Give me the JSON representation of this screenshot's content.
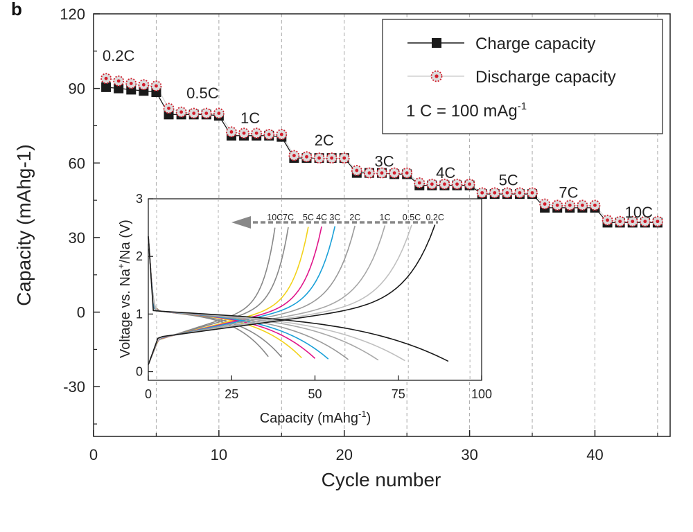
{
  "panel_label": "b",
  "chart_data": [
    {
      "type": "scatter",
      "xlabel": "Cycle number",
      "ylabel": "Capacity (mAhg-1)",
      "xlim": [
        0,
        46
      ],
      "ylim": [
        -50,
        120
      ],
      "xticks": [
        "0",
        "10",
        "20",
        "30",
        "40"
      ],
      "yticks": [
        "-30",
        "0",
        "30",
        "60",
        "90",
        "120"
      ],
      "grid": "vertical dashed lines at every 5 cycles",
      "legend": {
        "placement": "top-right",
        "charge": "Charge capacity",
        "discharge": "Discharge capacity",
        "note_prefix": "1 C = 100 mAg",
        "note_sup": "-1"
      },
      "rate_labels": [
        {
          "label": "0.2C",
          "cycle": 2,
          "value": 101
        },
        {
          "label": "0.5C",
          "cycle": 8.7,
          "value": 86
        },
        {
          "label": "1C",
          "cycle": 12.5,
          "value": 76
        },
        {
          "label": "2C",
          "cycle": 18.4,
          "value": 67
        },
        {
          "label": "3C",
          "cycle": 23.2,
          "value": 58.5
        },
        {
          "label": "4C",
          "cycle": 28.1,
          "value": 54
        },
        {
          "label": "5C",
          "cycle": 33.1,
          "value": 51
        },
        {
          "label": "7C",
          "cycle": 37.9,
          "value": 46
        },
        {
          "label": "10C",
          "cycle": 43.5,
          "value": 38
        }
      ],
      "series": [
        {
          "name": "Charge capacity",
          "marker": "filled-square",
          "color": "#1a1a1a",
          "x": [
            1,
            2,
            3,
            4,
            5,
            6,
            7,
            8,
            9,
            10,
            11,
            12,
            13,
            14,
            15,
            16,
            17,
            18,
            19,
            20,
            21,
            22,
            23,
            24,
            25,
            26,
            27,
            28,
            29,
            30,
            31,
            32,
            33,
            34,
            35,
            36,
            37,
            38,
            39,
            40,
            41,
            42,
            43,
            44,
            45
          ],
          "y": [
            90.5,
            90,
            89.5,
            89,
            88.5,
            79.5,
            79.5,
            79.5,
            79.5,
            79,
            71,
            71,
            71,
            71,
            70.5,
            62,
            62,
            62,
            62,
            62,
            56,
            56,
            56,
            55.5,
            55.5,
            51,
            51,
            51,
            51,
            51,
            47.5,
            47.5,
            47.5,
            47.5,
            47.5,
            42,
            42,
            42,
            42,
            42,
            36,
            36,
            36,
            36,
            36
          ]
        },
        {
          "name": "Discharge capacity",
          "marker": "red-dotted-circle",
          "color": "#d9d9d9",
          "x": [
            1,
            2,
            3,
            4,
            5,
            6,
            7,
            8,
            9,
            10,
            11,
            12,
            13,
            14,
            15,
            16,
            17,
            18,
            19,
            20,
            21,
            22,
            23,
            24,
            25,
            26,
            27,
            28,
            29,
            30,
            31,
            32,
            33,
            34,
            35,
            36,
            37,
            38,
            39,
            40,
            41,
            42,
            43,
            44,
            45
          ],
          "y": [
            94,
            93,
            92,
            91.5,
            91,
            82,
            80.5,
            80,
            80,
            80,
            72.5,
            72,
            72,
            71.5,
            71.5,
            63,
            62.5,
            62,
            62,
            62,
            57,
            56,
            56,
            56,
            56,
            52,
            51.5,
            51.5,
            51.5,
            51.5,
            48,
            48,
            48,
            48,
            48,
            43.5,
            43,
            43,
            43,
            43,
            37,
            36.5,
            36.5,
            36.5,
            36.5
          ]
        }
      ]
    },
    {
      "type": "line",
      "xlabel_prefix": "Capacity (mAhg",
      "xlabel_sup": "-1",
      "xlabel_suffix": ")",
      "ylabel_prefix": "Voltage vs. Na",
      "ylabel_sup": "+",
      "ylabel_suffix": "/Na (V)",
      "xlim": [
        0,
        100
      ],
      "ylim": [
        -0.15,
        3
      ],
      "xticks": [
        "0",
        "25",
        "50",
        "75",
        "100"
      ],
      "yticks": [
        "0",
        "1",
        "2",
        "3"
      ],
      "legend": "top labels with arrow pointing left",
      "curves": [
        {
          "name": "10C",
          "color": "#888888",
          "end": 36,
          "top": 38,
          "peak": 2.55
        },
        {
          "name": "7C",
          "color": "#888888",
          "end": 40,
          "top": 42,
          "peak": 2.55
        },
        {
          "name": "5C",
          "color": "#f2d21a",
          "end": 46,
          "top": 48,
          "peak": 2.55
        },
        {
          "name": "4C",
          "color": "#e0158a",
          "end": 50,
          "top": 52,
          "peak": 2.55
        },
        {
          "name": "3C",
          "color": "#1aa0d8",
          "end": 54,
          "top": 56,
          "peak": 2.55
        },
        {
          "name": "2C",
          "color": "#9a9a9a",
          "end": 60,
          "top": 62,
          "peak": 2.55
        },
        {
          "name": "1C",
          "color": "#a8a8a8",
          "end": 69,
          "top": 71,
          "peak": 2.55
        },
        {
          "name": "0.5C",
          "color": "#c0c0c0",
          "end": 77,
          "top": 79,
          "peak": 2.55
        },
        {
          "name": "0.2C",
          "color": "#1a1a1a",
          "end": 90,
          "top": 86,
          "peak": 2.55
        }
      ]
    }
  ]
}
